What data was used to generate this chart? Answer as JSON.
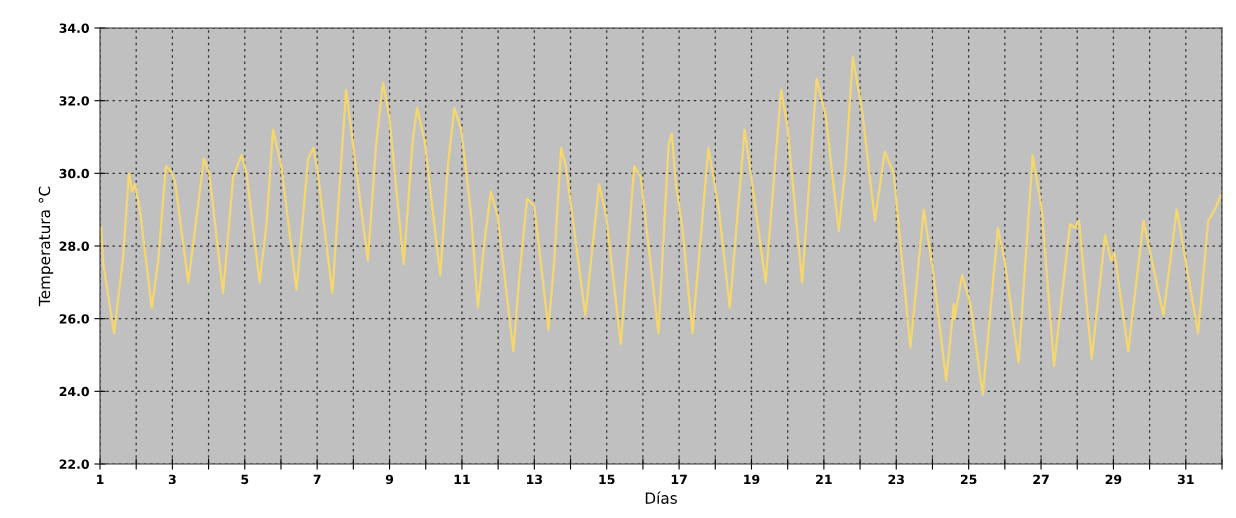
{
  "chart_data": {
    "type": "line",
    "xlabel": "Días",
    "ylabel": "Temperatura °C",
    "xlim": [
      1,
      32
    ],
    "ylim": [
      22,
      34
    ],
    "xticks": [
      1,
      {
        "value": 2,
        "label": null
      },
      3,
      {
        "value": 4,
        "label": null
      },
      5,
      {
        "value": 6,
        "label": null
      },
      7,
      {
        "value": 8,
        "label": null
      },
      9,
      {
        "value": 10,
        "label": null
      },
      11,
      {
        "value": 12,
        "label": null
      },
      13,
      {
        "value": 14,
        "label": null
      },
      15,
      {
        "value": 16,
        "label": null
      },
      17,
      {
        "value": 18,
        "label": null
      },
      19,
      {
        "value": 20,
        "label": null
      },
      21,
      {
        "value": 22,
        "label": null
      },
      23,
      {
        "value": 24,
        "label": null
      },
      25,
      {
        "value": 26,
        "label": null
      },
      27,
      {
        "value": 28,
        "label": null
      },
      29,
      {
        "value": 30,
        "label": null
      },
      31,
      {
        "value": 32,
        "label": null
      }
    ],
    "yticks": [
      {
        "value": 22,
        "label": "22.0"
      },
      {
        "value": 24,
        "label": "24.0"
      },
      {
        "value": 26,
        "label": "26.0"
      },
      {
        "value": 28,
        "label": "28.0"
      },
      {
        "value": 30,
        "label": "30.0"
      },
      {
        "value": 32,
        "label": "32.0"
      },
      {
        "value": 34,
        "label": "34.0"
      }
    ],
    "grid": true,
    "marker": "none",
    "line_style": "solid",
    "series": [
      {
        "color": "#f5d76e",
        "x": [
          1.03,
          1.09,
          1.39,
          1.64,
          1.8,
          1.89,
          1.97,
          2.1,
          2.43,
          2.61,
          2.82,
          2.93,
          3.07,
          3.44,
          3.67,
          3.87,
          4.02,
          4.4,
          4.68,
          4.91,
          5.05,
          5.41,
          5.6,
          5.78,
          6.01,
          6.43,
          6.75,
          6.9,
          7.02,
          7.42,
          7.67,
          7.8,
          7.99,
          8.4,
          8.63,
          8.82,
          9.0,
          9.39,
          9.64,
          9.76,
          9.97,
          10.4,
          10.61,
          10.79,
          10.98,
          11.25,
          11.44,
          11.62,
          11.8,
          11.99,
          12.42,
          12.59,
          12.8,
          13.0,
          13.39,
          13.55,
          13.74,
          13.87,
          14.41,
          14.79,
          14.99,
          15.39,
          15.76,
          15.94,
          16.43,
          16.71,
          16.8,
          16.91,
          17.09,
          17.37,
          17.81,
          18.1,
          18.4,
          18.81,
          19.02,
          19.39,
          19.82,
          19.99,
          20.4,
          20.8,
          21.05,
          21.41,
          21.6,
          21.8,
          22.06,
          22.41,
          22.68,
          22.93,
          23.39,
          23.76,
          24.03,
          24.38,
          24.59,
          24.61,
          24.82,
          25.05,
          25.39,
          25.81,
          26.01,
          26.38,
          26.77,
          27.02,
          27.36,
          27.8,
          27.94,
          28.05,
          28.4,
          28.77,
          28.93,
          29.03,
          29.41,
          29.83,
          30.38,
          30.75,
          31.34,
          31.62,
          31.8,
          31.97
        ],
        "values": [
          28.5,
          27.5,
          25.6,
          27.7,
          30.0,
          29.5,
          29.7,
          29.0,
          26.3,
          27.6,
          30.2,
          30.1,
          29.8,
          27.0,
          28.8,
          30.4,
          30.0,
          26.7,
          29.9,
          30.5,
          30.0,
          27.0,
          28.6,
          31.2,
          30.2,
          26.8,
          30.4,
          30.7,
          30.0,
          26.7,
          30.4,
          32.3,
          30.8,
          27.6,
          30.8,
          32.5,
          31.5,
          27.5,
          30.9,
          31.8,
          30.9,
          27.2,
          30.2,
          31.8,
          31.2,
          28.9,
          26.3,
          28.1,
          29.5,
          28.8,
          25.1,
          27.2,
          29.3,
          29.1,
          25.7,
          27.6,
          30.7,
          30.2,
          26.1,
          29.7,
          28.8,
          25.3,
          30.2,
          29.9,
          25.6,
          30.8,
          31.1,
          29.7,
          28.5,
          25.6,
          30.7,
          29.0,
          26.3,
          31.2,
          29.7,
          27.0,
          32.3,
          31.3,
          27.0,
          32.6,
          31.6,
          28.4,
          30.2,
          33.2,
          31.7,
          28.7,
          30.6,
          30.0,
          25.2,
          29.0,
          27.2,
          24.3,
          26.4,
          26.0,
          27.2,
          26.4,
          23.9,
          28.5,
          27.5,
          24.8,
          30.5,
          29.0,
          24.7,
          28.6,
          28.5,
          28.7,
          24.9,
          28.3,
          27.6,
          27.8,
          25.1,
          28.7,
          26.1,
          29.0,
          25.6,
          28.7,
          29.0,
          29.4
        ]
      }
    ]
  }
}
